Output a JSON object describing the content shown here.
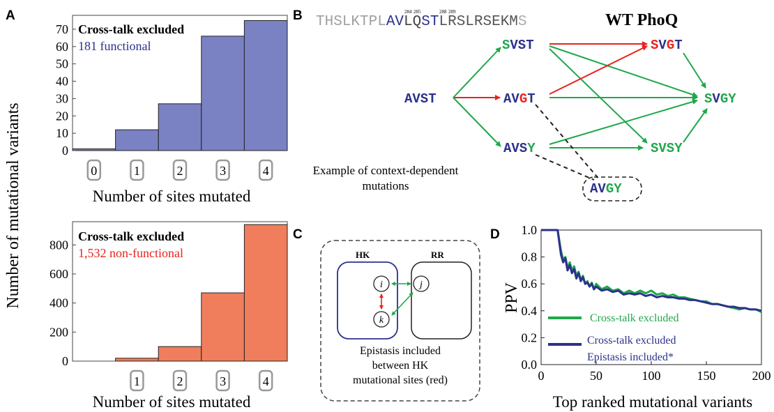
{
  "panel_labels": {
    "a": "A",
    "b": "B",
    "c": "C",
    "d": "D"
  },
  "shared_ylabel": "Number of mutational variants",
  "colors": {
    "blue_fill": "#7a82c4",
    "orange_fill": "#f07e5c",
    "blue_text": "#2b318c",
    "red": "#e8231f",
    "green": "#1fa84a",
    "grey_seq": "#a0a0a0"
  },
  "chart_data": [
    {
      "type": "bar",
      "title": "Cross-talk excluded",
      "subtitle": "181 functional",
      "categories": [
        "0",
        "1",
        "2",
        "3",
        "4"
      ],
      "values": [
        1,
        12,
        27,
        66,
        75
      ],
      "xlabel": "Number of sites mutated",
      "ylabel": "Number of mutational variants",
      "ylim": [
        0,
        78
      ],
      "yticks": [
        "0",
        "10",
        "20",
        "30",
        "40",
        "50",
        "60",
        "70"
      ]
    },
    {
      "type": "bar",
      "title": "Cross-talk excluded",
      "subtitle": "1,532 non-functional",
      "categories": [
        "1",
        "2",
        "3",
        "4"
      ],
      "values": [
        20,
        100,
        470,
        940
      ],
      "xlabel": "Number of sites mutated",
      "ylabel": "Number of mutational variants",
      "ylim": [
        0,
        960
      ],
      "yticks": [
        "0",
        "200",
        "400",
        "600",
        "800"
      ]
    },
    {
      "type": "line",
      "xlabel": "Top ranked mutational variants",
      "ylabel": "PPV",
      "xlim": [
        0,
        200
      ],
      "ylim": [
        0.0,
        1.0
      ],
      "xticks": [
        "0",
        "50",
        "100",
        "150",
        "200"
      ],
      "yticks": [
        "0.0",
        "0.2",
        "0.4",
        "0.6",
        "0.8",
        "1.0"
      ],
      "series": [
        {
          "name": "Cross-talk excluded",
          "color": "#1fa84a",
          "points": [
            [
              0,
              1.0
            ],
            [
              7,
              1.0
            ],
            [
              15,
              1.0
            ],
            [
              18,
              0.85
            ],
            [
              20,
              0.78
            ],
            [
              22,
              0.8
            ],
            [
              24,
              0.72
            ],
            [
              26,
              0.76
            ],
            [
              28,
              0.7
            ],
            [
              30,
              0.73
            ],
            [
              32,
              0.66
            ],
            [
              34,
              0.69
            ],
            [
              36,
              0.63
            ],
            [
              38,
              0.66
            ],
            [
              40,
              0.6
            ],
            [
              42,
              0.62
            ],
            [
              44,
              0.58
            ],
            [
              46,
              0.61
            ],
            [
              48,
              0.56
            ],
            [
              50,
              0.6
            ],
            [
              55,
              0.56
            ],
            [
              60,
              0.58
            ],
            [
              65,
              0.55
            ],
            [
              70,
              0.56
            ],
            [
              75,
              0.53
            ],
            [
              80,
              0.55
            ],
            [
              85,
              0.53
            ],
            [
              90,
              0.55
            ],
            [
              95,
              0.53
            ],
            [
              100,
              0.55
            ],
            [
              105,
              0.52
            ],
            [
              110,
              0.53
            ],
            [
              115,
              0.51
            ],
            [
              120,
              0.52
            ],
            [
              125,
              0.5
            ],
            [
              130,
              0.5
            ],
            [
              135,
              0.49
            ],
            [
              140,
              0.48
            ],
            [
              145,
              0.47
            ],
            [
              150,
              0.47
            ],
            [
              155,
              0.45
            ],
            [
              160,
              0.45
            ],
            [
              165,
              0.44
            ],
            [
              170,
              0.43
            ],
            [
              175,
              0.42
            ],
            [
              180,
              0.41
            ],
            [
              185,
              0.42
            ],
            [
              190,
              0.41
            ],
            [
              195,
              0.41
            ],
            [
              200,
              0.39
            ]
          ]
        },
        {
          "name": "Cross-talk excluded\nEpistasis included*",
          "color": "#2b318c",
          "points": [
            [
              0,
              1.0
            ],
            [
              7,
              1.0
            ],
            [
              15,
              1.0
            ],
            [
              18,
              0.82
            ],
            [
              20,
              0.76
            ],
            [
              22,
              0.79
            ],
            [
              24,
              0.7
            ],
            [
              26,
              0.74
            ],
            [
              28,
              0.68
            ],
            [
              30,
              0.71
            ],
            [
              32,
              0.64
            ],
            [
              34,
              0.68
            ],
            [
              36,
              0.62
            ],
            [
              38,
              0.65
            ],
            [
              40,
              0.6
            ],
            [
              42,
              0.61
            ],
            [
              44,
              0.58
            ],
            [
              46,
              0.6
            ],
            [
              48,
              0.56
            ],
            [
              50,
              0.58
            ],
            [
              55,
              0.55
            ],
            [
              60,
              0.56
            ],
            [
              65,
              0.54
            ],
            [
              70,
              0.55
            ],
            [
              75,
              0.52
            ],
            [
              80,
              0.53
            ],
            [
              85,
              0.52
            ],
            [
              90,
              0.53
            ],
            [
              95,
              0.51
            ],
            [
              100,
              0.52
            ],
            [
              105,
              0.5
            ],
            [
              110,
              0.51
            ],
            [
              115,
              0.5
            ],
            [
              120,
              0.5
            ],
            [
              125,
              0.49
            ],
            [
              130,
              0.49
            ],
            [
              135,
              0.48
            ],
            [
              140,
              0.48
            ],
            [
              145,
              0.47
            ],
            [
              150,
              0.46
            ],
            [
              155,
              0.45
            ],
            [
              160,
              0.45
            ],
            [
              165,
              0.44
            ],
            [
              170,
              0.43
            ],
            [
              175,
              0.43
            ],
            [
              180,
              0.42
            ],
            [
              185,
              0.42
            ],
            [
              190,
              0.41
            ],
            [
              195,
              0.41
            ],
            [
              200,
              0.4
            ]
          ]
        }
      ]
    }
  ],
  "panel_b": {
    "sequence": {
      "grey_prefix": "THSLKTPL",
      "blue_av": "AV",
      "mid": "LQ",
      "blue_st": "ST",
      "suffix": "LRSLRSEKM",
      "tail": "S",
      "num_284": "284",
      "num_285": "285",
      "num_288": "288",
      "num_289": "289"
    },
    "title": "WT PhoQ",
    "nodes": {
      "avst": [
        "AVST"
      ],
      "svst": [
        "S",
        "VST"
      ],
      "avgt": [
        "AV",
        "G",
        "T"
      ],
      "avsy": [
        "AVS",
        "Y"
      ],
      "svgt": [
        "S",
        "V",
        "G",
        "T"
      ],
      "svgy": [
        "S",
        "V",
        "GY"
      ],
      "svsy": [
        "SVSY"
      ],
      "avgy": [
        "AV",
        "GY"
      ]
    },
    "caption_line1": "Example of context-dependent",
    "caption_line2": "mutations"
  },
  "panel_c": {
    "hk": "HK",
    "rr": "RR",
    "site_i": "i",
    "site_j": "j",
    "site_k": "k",
    "caption_line1": "Epistasis included",
    "caption_line2": "between HK",
    "caption_line3": "mutational sites (red)"
  }
}
